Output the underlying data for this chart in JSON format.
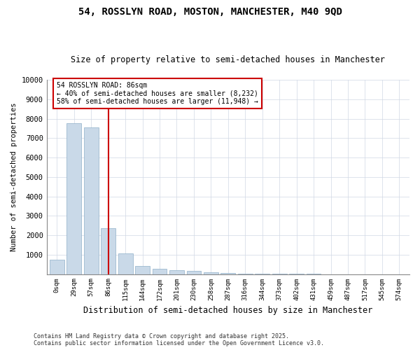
{
  "title": "54, ROSSLYN ROAD, MOSTON, MANCHESTER, M40 9QD",
  "subtitle": "Size of property relative to semi-detached houses in Manchester",
  "xlabel": "Distribution of semi-detached houses by size in Manchester",
  "ylabel": "Number of semi-detached properties",
  "footnote1": "Contains HM Land Registry data © Crown copyright and database right 2025.",
  "footnote2": "Contains public sector information licensed under the Open Government Licence v3.0.",
  "annotation_title": "54 ROSSLYN ROAD: 86sqm",
  "annotation_line2": "← 40% of semi-detached houses are smaller (8,232)",
  "annotation_line3": "58% of semi-detached houses are larger (11,948) →",
  "bar_categories": [
    "0sqm",
    "29sqm",
    "57sqm",
    "86sqm",
    "115sqm",
    "144sqm",
    "172sqm",
    "201sqm",
    "230sqm",
    "258sqm",
    "287sqm",
    "316sqm",
    "344sqm",
    "373sqm",
    "402sqm",
    "431sqm",
    "459sqm",
    "487sqm",
    "517sqm",
    "545sqm",
    "574sqm"
  ],
  "bar_values": [
    750,
    7750,
    7550,
    2350,
    1050,
    430,
    280,
    200,
    170,
    80,
    50,
    30,
    15,
    8,
    5,
    3,
    2,
    1,
    1,
    0,
    0
  ],
  "bar_color": "#c9d9e8",
  "bar_edge_color": "#8fafc8",
  "subject_bar_index": 3,
  "vline_color": "#cc0000",
  "ylim": [
    0,
    10000
  ],
  "yticks": [
    0,
    1000,
    2000,
    3000,
    4000,
    5000,
    6000,
    7000,
    8000,
    9000,
    10000
  ],
  "bg_color": "#ffffff",
  "annotation_box_color": "#ffffff",
  "annotation_box_edge": "#cc0000",
  "grid_color": "#d0d8e4"
}
